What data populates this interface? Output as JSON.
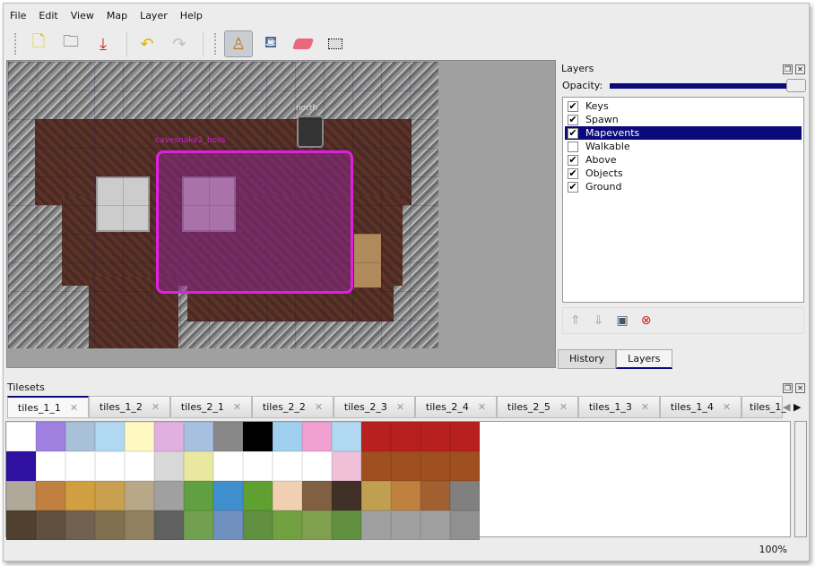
{
  "menu": [
    "File",
    "Edit",
    "View",
    "Map",
    "Layer",
    "Help"
  ],
  "toolbar": {
    "icons": [
      "new-file-icon",
      "open-icon",
      "save-icon",
      "undo-icon",
      "redo-icon",
      "stamp-brush-icon",
      "bucket-fill-icon",
      "eraser-icon",
      "rect-select-icon"
    ],
    "active": "stamp-brush-icon"
  },
  "map": {
    "object_label": "cavesnake2_boss",
    "north_label": "north",
    "selection_color": "#e020e0"
  },
  "layers_panel": {
    "title": "Layers",
    "opacity_label": "Opacity:",
    "opacity": 1.0,
    "layers": [
      {
        "name": "Keys",
        "visible": true
      },
      {
        "name": "Spawn",
        "visible": true
      },
      {
        "name": "Mapevents",
        "visible": true,
        "selected": true
      },
      {
        "name": "Walkable",
        "visible": false
      },
      {
        "name": "Above",
        "visible": true
      },
      {
        "name": "Objects",
        "visible": true
      },
      {
        "name": "Ground",
        "visible": true
      }
    ],
    "tabs": [
      "History",
      "Layers"
    ],
    "active_tab": "Layers"
  },
  "tilesets": {
    "title": "Tilesets",
    "tabs": [
      "tiles_1_1",
      "tiles_1_2",
      "tiles_2_1",
      "tiles_2_2",
      "tiles_2_3",
      "tiles_2_4",
      "tiles_2_5",
      "tiles_1_3",
      "tiles_1_4",
      "tiles_1_"
    ],
    "active_tab": "tiles_1_1"
  },
  "status": {
    "zoom": "100%"
  },
  "colors": {
    "selection": "#0a0a7a"
  }
}
